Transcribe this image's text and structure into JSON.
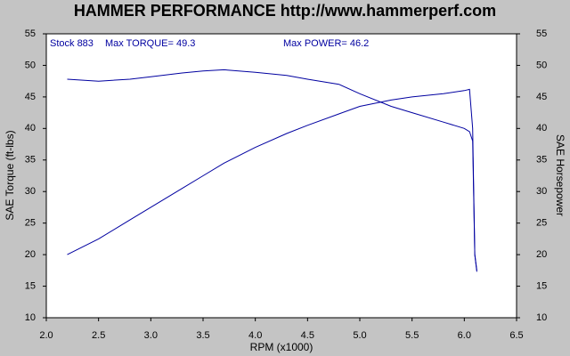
{
  "chart_data": {
    "type": "line",
    "title": "HAMMER PERFORMANCE http://www.hammerperf.com",
    "annotations": [
      "Stock 883",
      "Max TORQUE= 49.3",
      "Max POWER= 46.2"
    ],
    "x_label": "RPM (x1000)",
    "y_label": "SAE Torque (ft-lbs)",
    "y2_label": "SAE Horsepower",
    "x": [
      2.2,
      2.5,
      2.8,
      3.0,
      3.3,
      3.5,
      3.7,
      4.0,
      4.3,
      4.5,
      4.8,
      5.0,
      5.3,
      5.5,
      5.8,
      6.0,
      6.05,
      6.08,
      6.1,
      6.12
    ],
    "series": [
      {
        "color": "#0000a0",
        "values": [
          47.8,
          47.5,
          47.8,
          48.2,
          48.8,
          49.1,
          49.3,
          48.9,
          48.4,
          47.8,
          47.0,
          45.5,
          43.5,
          42.5,
          41.0,
          40.0,
          39.5,
          38.0,
          20.0,
          17.5
        ]
      },
      {
        "color": "#0000a0",
        "axis": "y2",
        "values": [
          20.0,
          22.5,
          25.5,
          27.5,
          30.5,
          32.5,
          34.5,
          37.0,
          39.2,
          40.5,
          42.3,
          43.5,
          44.5,
          45.0,
          45.5,
          46.0,
          46.2,
          40.0,
          20.0,
          17.3
        ]
      }
    ],
    "xlim": [
      2.0,
      6.5
    ],
    "xticks": [
      {
        "value": 2,
        "label": "2.0"
      },
      2.5,
      {
        "value": 3,
        "label": "3.0"
      },
      3.5,
      {
        "value": 4,
        "label": "4.0"
      },
      4.5,
      {
        "value": 5,
        "label": "5.0"
      },
      5.5,
      {
        "value": 6,
        "label": "6.0"
      },
      6.5
    ],
    "ylim": [
      10,
      55
    ],
    "yticks": [
      10,
      15,
      20,
      25,
      30,
      35,
      40,
      45,
      50,
      55
    ],
    "y2lim": [
      10,
      55
    ],
    "y2ticks": [
      10,
      15,
      20,
      25,
      30,
      35,
      40,
      45,
      50,
      55
    ],
    "grid": false
  }
}
